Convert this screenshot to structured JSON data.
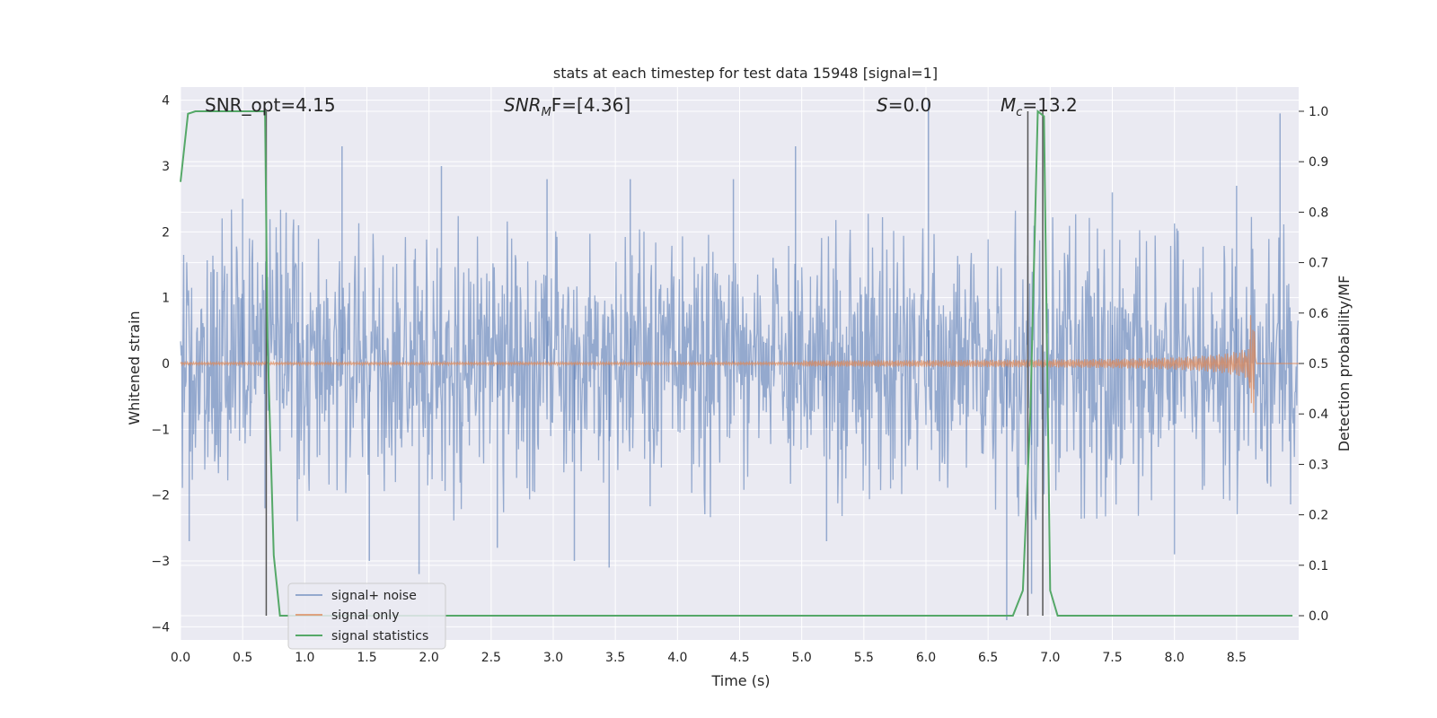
{
  "chart_data": {
    "type": "line",
    "title": "stats at each timestep for test data 15948 [signal=1]",
    "xlabel": "Time (s)",
    "ylabel": "Whitened strain",
    "y2label": "Detection probability/MF",
    "xlim": [
      0.0,
      9.0
    ],
    "ylim": [
      -4.2,
      4.2
    ],
    "y2lim": [
      -0.048,
      1.048
    ],
    "xticks": [
      "0.0",
      "0.5",
      "1.0",
      "1.5",
      "2.0",
      "2.5",
      "3.0",
      "3.5",
      "4.0",
      "4.5",
      "5.0",
      "5.5",
      "6.0",
      "6.5",
      "7.0",
      "7.5",
      "8.0",
      "8.5"
    ],
    "xtick_values": [
      0.0,
      0.5,
      1.0,
      1.5,
      2.0,
      2.5,
      3.0,
      3.5,
      4.0,
      4.5,
      5.0,
      5.5,
      6.0,
      6.5,
      7.0,
      7.5,
      8.0,
      8.5
    ],
    "yticks": [
      "−4",
      "−3",
      "−2",
      "−1",
      "0",
      "1",
      "2",
      "3",
      "4"
    ],
    "ytick_values": [
      -4,
      -3,
      -2,
      -1,
      0,
      1,
      2,
      3,
      4
    ],
    "y2ticks": [
      "0.0",
      "0.1",
      "0.2",
      "0.3",
      "0.4",
      "0.5",
      "0.6",
      "0.7",
      "0.8",
      "0.9",
      "1.0"
    ],
    "y2tick_values": [
      0.0,
      0.1,
      0.2,
      0.3,
      0.4,
      0.5,
      0.6,
      0.7,
      0.8,
      0.9,
      1.0
    ],
    "grid": true,
    "legend_placement": "lower-left",
    "annotations": {
      "snr_opt": "SNR_opt=4.15",
      "snr_mf_main": "SNR",
      "snr_mf_sub": "M",
      "snr_mf_rest": "F=[4.36]",
      "s_main": "S",
      "s_rest": "=0.0",
      "mc_main": "M",
      "mc_sub": "c",
      "mc_rest": "=13.2"
    },
    "series": [
      {
        "name": "signal+ noise",
        "axis": "left",
        "color": "#4c72b0",
        "description_values": "noise band approximately between -2.5 and 2.5 with spikes",
        "spikes": [
          [
            0.07,
            -2.7
          ],
          [
            0.5,
            2.5
          ],
          [
            0.68,
            -2.2
          ],
          [
            0.95,
            2.1
          ],
          [
            1.3,
            3.3
          ],
          [
            1.52,
            -3.0
          ],
          [
            1.92,
            -3.2
          ],
          [
            2.1,
            3.0
          ],
          [
            2.55,
            -2.8
          ],
          [
            2.95,
            2.8
          ],
          [
            3.17,
            -3.0
          ],
          [
            3.45,
            -3.1
          ],
          [
            3.62,
            2.8
          ],
          [
            4.45,
            2.8
          ],
          [
            4.95,
            3.3
          ],
          [
            5.2,
            -2.7
          ],
          [
            6.02,
            4.0
          ],
          [
            6.65,
            -3.9
          ],
          [
            6.85,
            -3.5
          ],
          [
            7.5,
            2.6
          ],
          [
            8.0,
            -2.9
          ],
          [
            8.5,
            2.7
          ],
          [
            8.85,
            3.8
          ]
        ]
      },
      {
        "name": "signal only",
        "axis": "left",
        "color": "#dd8452",
        "chirp_start": 5.0,
        "chirp_end": 8.65,
        "peak_amplitude": 0.75
      },
      {
        "name": "signal statistics",
        "axis": "right",
        "color": "#55a868",
        "x": [
          0.0,
          0.06,
          0.12,
          0.2,
          0.4,
          0.62,
          0.68,
          0.7,
          0.75,
          0.8,
          0.85,
          1.0,
          2.0,
          3.0,
          4.0,
          5.0,
          6.0,
          6.6,
          6.7,
          6.78,
          6.84,
          6.9,
          6.95,
          7.0,
          7.06,
          7.2,
          8.0,
          8.95
        ],
        "values": [
          0.86,
          0.995,
          1.0,
          1.0,
          1.0,
          1.0,
          1.0,
          0.55,
          0.12,
          0.0,
          0.0,
          0.0,
          0.0,
          0.0,
          0.0,
          0.0,
          0.0,
          0.0,
          0.0,
          0.05,
          0.4,
          1.0,
          0.99,
          0.05,
          0.0,
          0.0,
          0.0,
          0.0
        ]
      }
    ],
    "vertical_markers": [
      0.69,
      6.82,
      6.94
    ],
    "marker_color": "#555555"
  },
  "legend": {
    "items": [
      {
        "label": "signal+ noise",
        "color": "#4c72b0"
      },
      {
        "label": "signal only",
        "color": "#dd8452"
      },
      {
        "label": "signal statistics",
        "color": "#55a868"
      }
    ]
  },
  "colors": {
    "plot_bg": "#eaeaf2",
    "grid": "#ffffff"
  }
}
